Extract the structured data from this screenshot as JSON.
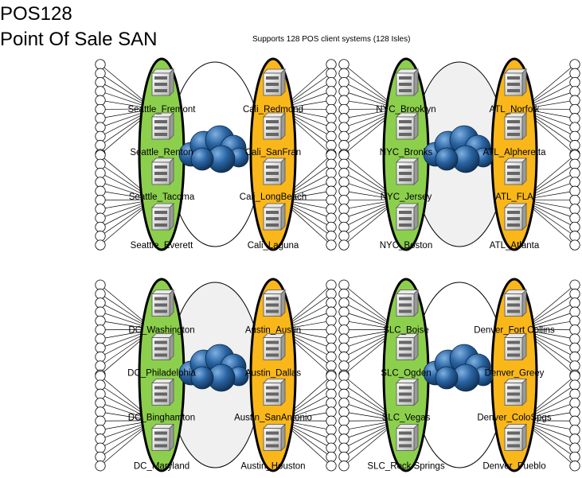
{
  "title_line1": "POS128",
  "title_line2": "Point Of Sale SAN",
  "subtitle": "Supports 128 POS client systems (128 Isles)",
  "colors": {
    "green": "#8ccf4d",
    "orange": "#f9b71a",
    "middle": "#f0f0f0",
    "cloud": "#1e4f86"
  },
  "clusters": [
    {
      "left": [
        "Seattle_Fremont",
        "Seattle_Renton",
        "Seattle_Tacoma",
        "Seattle_Everett"
      ],
      "right": [
        "Cali_Redmond",
        "Cali_SanFran",
        "Cali_LongBeach",
        "Cali_Laguna"
      ]
    },
    {
      "left": [
        "NYC_Brooklyn",
        "NYC_Bronks",
        "NYC_Jersey",
        "NYC_Boston"
      ],
      "right": [
        "ATL_Norfolk",
        "ATL_Alpheretta",
        "ATL_FLA",
        "ATL_Atlanta"
      ]
    },
    {
      "left": [
        "DC_Washington",
        "DC_Philadelphia",
        "DC_Binghamton",
        "DC_Maryland"
      ],
      "right": [
        "Austin_Austin",
        "Austin_Dallas",
        "Austin_SanAntonio",
        "Austin_Houston"
      ]
    },
    {
      "left": [
        "SLC_Boise",
        "SLC_Ogden",
        "SLC_Vegas",
        "SLC_Rock Springs"
      ],
      "right": [
        "Denver_Fort Collins",
        "Denver_Greey",
        "Denver_ColoSpgs",
        "Denver_Pueblo"
      ]
    }
  ]
}
